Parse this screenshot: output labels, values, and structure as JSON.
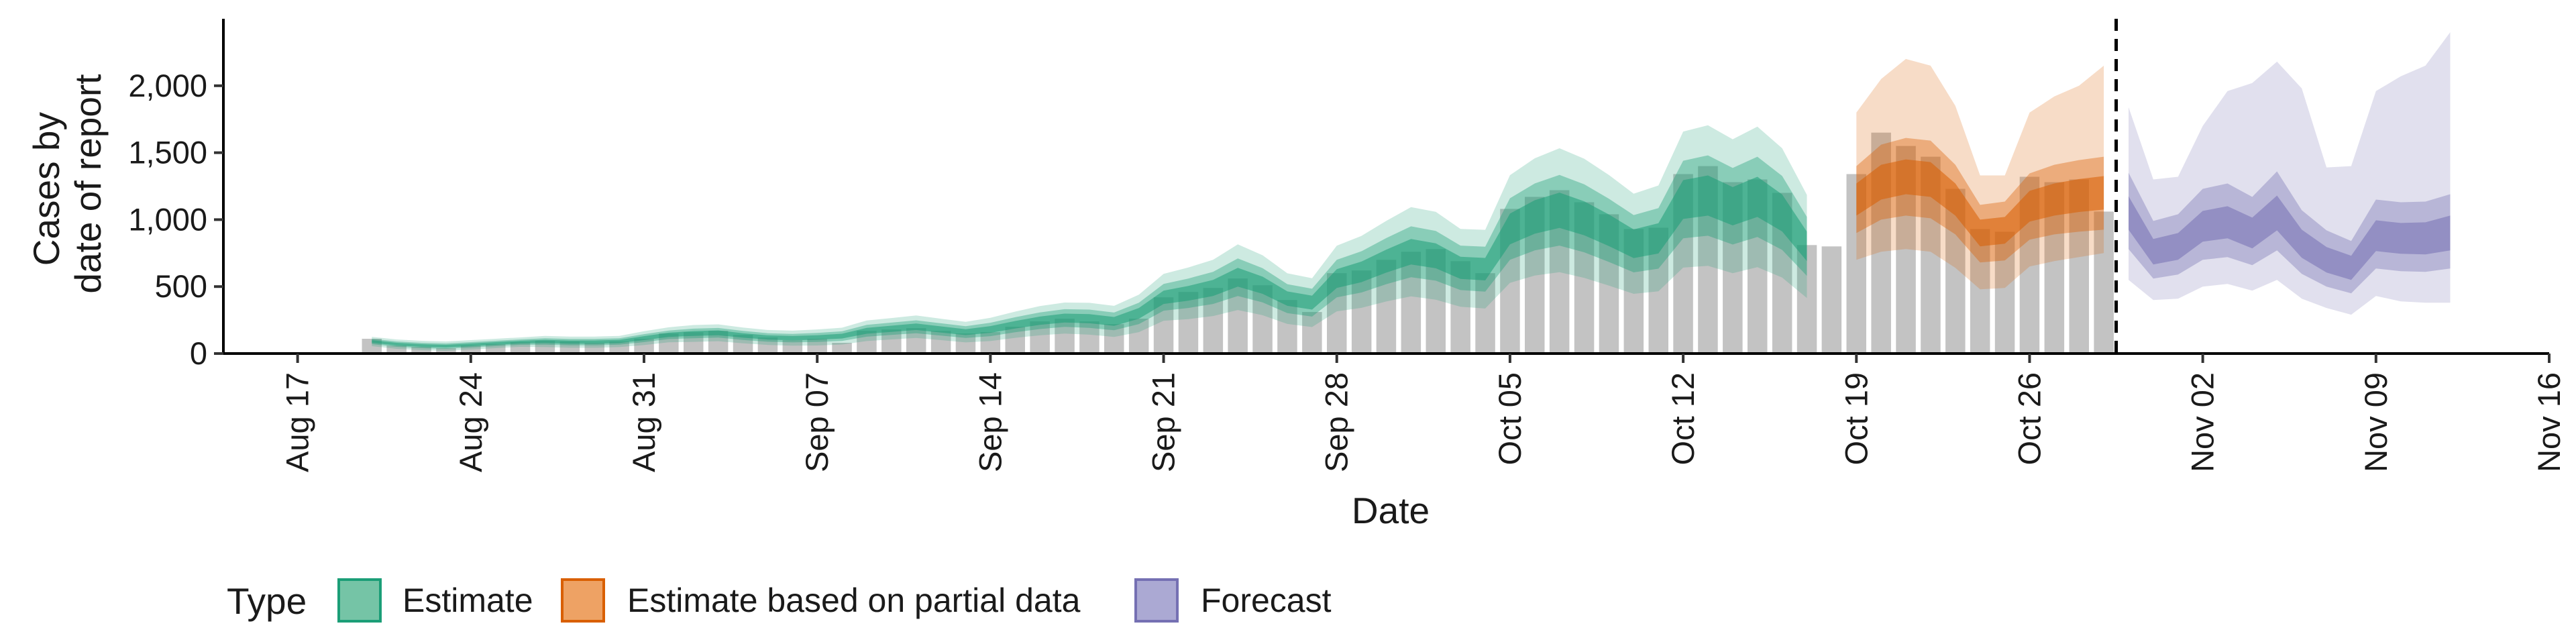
{
  "chart_data": {
    "type": "bar",
    "title": "",
    "xlabel": "Date",
    "ylabel": [
      "Cases by",
      "date of report"
    ],
    "ylim": [
      0,
      2500
    ],
    "y_ticks": [
      0,
      500,
      1000,
      1500,
      2000
    ],
    "y_tick_labels": [
      "0",
      "500",
      "1,000",
      "1,500",
      "2,000"
    ],
    "x_range": [
      "2020-08-14",
      "2020-11-16"
    ],
    "x_ticks": [
      "2020-08-17",
      "2020-08-24",
      "2020-08-31",
      "2020-09-07",
      "2020-09-14",
      "2020-09-21",
      "2020-09-28",
      "2020-10-05",
      "2020-10-12",
      "2020-10-19",
      "2020-10-26",
      "2020-11-02",
      "2020-11-09",
      "2020-11-16"
    ],
    "x_tick_labels": [
      "Aug 17",
      "Aug 24",
      "Aug 31",
      "Sep 07",
      "Sep 14",
      "Sep 21",
      "Sep 28",
      "Oct 05",
      "Oct 12",
      "Oct 19",
      "Oct 26",
      "Nov 02",
      "Nov 09",
      "Nov 16"
    ],
    "forecast_date": "2020-10-29",
    "grid": false,
    "legend": {
      "title": "Type",
      "position": "bottom",
      "entries": [
        {
          "label": "Estimate",
          "color": "#1b9e77"
        },
        {
          "label": "Estimate based on partial data",
          "color": "#d95f02"
        },
        {
          "label": "Forecast",
          "color": "#7570b3"
        }
      ]
    },
    "bar_color": "#bdbdbd",
    "observed_cases": {
      "start": "2020-08-20",
      "values": [
        110,
        60,
        50,
        40,
        60,
        70,
        85,
        95,
        90,
        80,
        90,
        110,
        150,
        160,
        170,
        140,
        120,
        100,
        110,
        80,
        170,
        180,
        190,
        170,
        150,
        160,
        200,
        240,
        260,
        240,
        220,
        260,
        420,
        460,
        490,
        560,
        510,
        400,
        310,
        600,
        620,
        700,
        760,
        780,
        690,
        600,
        1080,
        1170,
        1220,
        1130,
        1040,
        930,
        940,
        1340,
        1400,
        1280,
        1300,
        1200,
        810,
        800,
        1340,
        1650,
        1550,
        1470,
        1230,
        930,
        910,
        1320,
        1280,
        1300,
        1060
      ]
    },
    "series": [
      {
        "name": "Estimate",
        "type": "Estimate",
        "start": "2020-08-20",
        "median": [
          90,
          70,
          60,
          55,
          65,
          75,
          85,
          90,
          85,
          85,
          90,
          115,
          140,
          150,
          155,
          135,
          120,
          115,
          120,
          130,
          170,
          185,
          200,
          180,
          160,
          180,
          215,
          245,
          265,
          260,
          240,
          300,
          420,
          450,
          490,
          570,
          510,
          410,
          380,
          560,
          610,
          690,
          760,
          730,
          640,
          630,
          930,
          1020,
          1070,
          1010,
          920,
          820,
          860,
          1150,
          1180,
          1100,
          1170,
          1050,
          800
        ],
        "inner_lo": [
          80,
          60,
          50,
          45,
          55,
          65,
          75,
          78,
          73,
          73,
          78,
          100,
          124,
          132,
          137,
          118,
          104,
          99,
          103,
          112,
          148,
          162,
          176,
          157,
          138,
          155,
          187,
          214,
          232,
          226,
          207,
          260,
          370,
          395,
          430,
          500,
          446,
          356,
          328,
          490,
          533,
          604,
          665,
          637,
          557,
          546,
          815,
          895,
          938,
          883,
          802,
          713,
          747,
          1005,
          1030,
          957,
          1020,
          912,
          690
        ],
        "inner_hi": [
          100,
          80,
          70,
          65,
          75,
          85,
          95,
          102,
          97,
          97,
          102,
          130,
          156,
          168,
          173,
          152,
          136,
          131,
          137,
          148,
          192,
          208,
          224,
          203,
          182,
          205,
          243,
          276,
          298,
          294,
          273,
          340,
          470,
          505,
          550,
          640,
          574,
          464,
          432,
          630,
          687,
          776,
          855,
          823,
          723,
          714,
          1045,
          1145,
          1202,
          1137,
          1038,
          927,
          973,
          1295,
          1330,
          1243,
          1320,
          1188,
          910
        ],
        "mid_lo": [
          70,
          50,
          40,
          35,
          45,
          55,
          65,
          66,
          61,
          61,
          66,
          85,
          108,
          114,
          119,
          101,
          88,
          83,
          86,
          94,
          126,
          139,
          152,
          134,
          116,
          130,
          159,
          183,
          199,
          192,
          174,
          220,
          320,
          340,
          370,
          430,
          382,
          302,
          276,
          420,
          456,
          518,
          570,
          544,
          474,
          462,
          700,
          770,
          806,
          756,
          684,
          606,
          634,
          860,
          880,
          814,
          870,
          774,
          580
        ],
        "mid_hi": [
          110,
          90,
          80,
          75,
          85,
          95,
          105,
          114,
          109,
          109,
          114,
          145,
          172,
          186,
          191,
          169,
          152,
          147,
          154,
          166,
          214,
          231,
          248,
          226,
          204,
          230,
          271,
          307,
          331,
          328,
          306,
          380,
          520,
          560,
          610,
          710,
          638,
          518,
          484,
          700,
          764,
          862,
          950,
          916,
          806,
          798,
          1160,
          1270,
          1334,
          1264,
          1156,
          1034,
          1086,
          1440,
          1480,
          1386,
          1470,
          1326,
          1020
        ],
        "outer_lo": [
          55,
          35,
          25,
          20,
          30,
          40,
          50,
          48,
          43,
          43,
          48,
          63,
          84,
          87,
          92,
          76,
          64,
          59,
          60,
          67,
          93,
          105,
          116,
          100,
          83,
          93,
          117,
          136,
          149,
          141,
          124,
          160,
          245,
          257,
          280,
          325,
          286,
          221,
          198,
          315,
          341,
          389,
          427,
          402,
          349,
          336,
          528,
          582,
          607,
          565,
          507,
          446,
          465,
          642,
          655,
          600,
          645,
          567,
          415
        ],
        "outer_hi": [
          125,
          105,
          95,
          90,
          100,
          110,
          120,
          132,
          127,
          127,
          132,
          167,
          196,
          213,
          218,
          194,
          176,
          171,
          180,
          193,
          247,
          265,
          284,
          260,
          237,
          267,
          313,
          354,
          381,
          379,
          356,
          440,
          595,
          643,
          700,
          815,
          734,
          599,
          562,
          805,
          879,
          991,
          1093,
          1058,
          931,
          924,
          1332,
          1458,
          1533,
          1455,
          1333,
          1194,
          1255,
          1658,
          1705,
          1600,
          1695,
          1533,
          1185
        ]
      },
      {
        "name": "Estimate based on partial data",
        "type": "Estimate based on partial data",
        "start": "2020-10-19",
        "median": [
          1150,
          1280,
          1320,
          1300,
          1150,
          900,
          920,
          1100,
          1150,
          1180,
          1200
        ],
        "inner_lo": [
          1030,
          1150,
          1190,
          1170,
          1030,
          800,
          820,
          985,
          1030,
          1057,
          1075
        ],
        "inner_hi": [
          1270,
          1410,
          1450,
          1430,
          1270,
          1000,
          1020,
          1215,
          1270,
          1303,
          1325
        ],
        "mid_lo": [
          900,
          1000,
          1030,
          1010,
          890,
          680,
          695,
          850,
          890,
          910,
          925
        ],
        "mid_hi": [
          1400,
          1560,
          1610,
          1590,
          1410,
          1110,
          1135,
          1345,
          1410,
          1445,
          1470
        ],
        "outer_lo": [
          700,
          760,
          780,
          760,
          640,
          480,
          490,
          650,
          690,
          720,
          750
        ],
        "outer_hi": [
          1800,
          2050,
          2200,
          2150,
          1850,
          1330,
          1330,
          1800,
          1920,
          2000,
          2150
        ]
      },
      {
        "name": "Forecast",
        "type": "Forecast",
        "start": "2020-10-30",
        "median": [
          1050,
          760,
          800,
          950,
          980,
          900,
          1050,
          820,
          700,
          640,
          880,
          860,
          860,
          900
        ],
        "inner_lo": [
          925,
          665,
          700,
          835,
          860,
          785,
          920,
          715,
          605,
          550,
          765,
          745,
          740,
          770
        ],
        "inner_hi": [
          1175,
          855,
          900,
          1065,
          1100,
          1015,
          1180,
          925,
          795,
          730,
          995,
          975,
          980,
          1030
        ],
        "mid_lo": [
          780,
          560,
          590,
          700,
          720,
          660,
          770,
          595,
          500,
          450,
          635,
          615,
          610,
          635
        ],
        "mid_hi": [
          1350,
          990,
          1040,
          1230,
          1270,
          1170,
          1360,
          1070,
          920,
          840,
          1150,
          1130,
          1135,
          1190
        ],
        "outer_lo": [
          550,
          400,
          410,
          500,
          520,
          470,
          550,
          410,
          340,
          290,
          430,
          390,
          380,
          380
        ],
        "outer_hi": [
          1840,
          1300,
          1320,
          1700,
          1960,
          2020,
          2180,
          1980,
          1390,
          1400,
          1960,
          2070,
          2150,
          2400
        ]
      }
    ]
  }
}
